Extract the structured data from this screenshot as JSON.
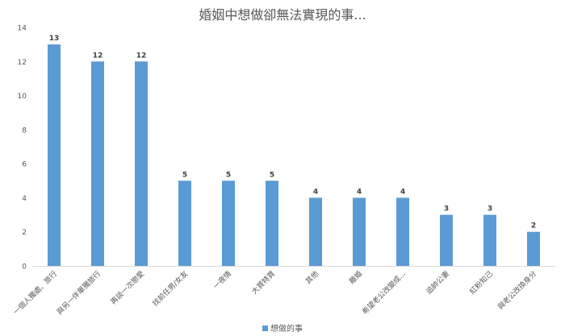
{
  "chart_data": {
    "type": "bar",
    "title": "婚姻中想做卻無法實現的事...",
    "categories": [
      "一個人獨處、旅行",
      "與另一伴單獨旅行",
      "再談一次戀愛",
      "找前任男/女友",
      "一夜情",
      "大買特買",
      "其他",
      "離婚",
      "希望老公改變成...",
      "追帥公妻",
      "紅粉知己",
      "與老公改換身分"
    ],
    "series": [
      {
        "name": "想做的事",
        "values": [
          13,
          12,
          12,
          5,
          5,
          5,
          4,
          4,
          4,
          3,
          3,
          2
        ]
      }
    ],
    "ylim": [
      0,
      14
    ],
    "yticks": [
      0,
      2,
      4,
      6,
      8,
      10,
      12,
      14
    ],
    "grid": false,
    "legend_position": "bottom",
    "bar_color": "#5b9bd5"
  }
}
